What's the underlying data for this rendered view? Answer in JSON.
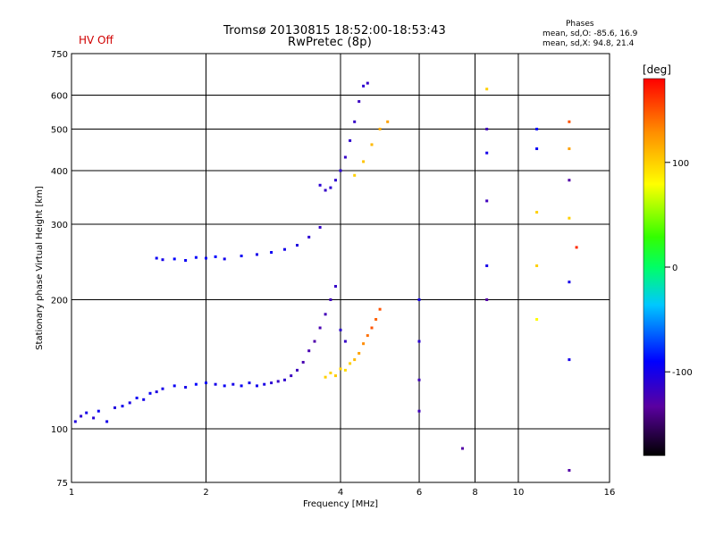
{
  "chart_data": {
    "type": "scatter",
    "title": "Tromsø 20130815 18:52:00-18:53:43",
    "subtitle": "RwPretec (8p)",
    "status": "HV Off",
    "status_color": "#d00000",
    "phases_title": "Phases",
    "phases_o": "mean, sd,O: -85.6, 16.9",
    "phases_x": "mean, sd,X:  94.8, 21.4",
    "xlabel": "Frequency [MHz]",
    "ylabel": "Stationary phase Virtual Height [km]",
    "colorbar_label": "[deg]",
    "x_scale": "log",
    "y_scale": "log",
    "xlim": [
      1,
      16
    ],
    "ylim": [
      75,
      750
    ],
    "x_ticks": [
      1,
      2,
      4,
      6,
      8,
      10,
      16
    ],
    "x_tick_labels": [
      "1",
      "2",
      "4",
      "6",
      "8",
      "10",
      "16"
    ],
    "y_ticks": [
      75,
      100,
      200,
      300,
      400,
      500,
      600,
      750
    ],
    "y_tick_labels": [
      "75",
      "100",
      "200",
      "300",
      "400",
      "500",
      "600",
      "750"
    ],
    "colorbar_ticks": [
      100,
      0,
      -100
    ],
    "colorbar_tick_labels": [
      "100",
      "0",
      "-100"
    ],
    "colorbar_range": [
      -180,
      180
    ],
    "grid": true,
    "series": [
      {
        "points": [
          [
            1.02,
            104,
            -105
          ],
          [
            1.05,
            107,
            -110
          ],
          [
            1.08,
            109,
            -100
          ],
          [
            1.12,
            106,
            -108
          ],
          [
            1.15,
            110,
            -95
          ],
          [
            1.2,
            104,
            -100
          ],
          [
            1.25,
            112,
            -105
          ],
          [
            1.3,
            113,
            -98
          ],
          [
            1.35,
            115,
            -102
          ],
          [
            1.4,
            118,
            -95
          ],
          [
            1.45,
            117,
            -100
          ],
          [
            1.5,
            121,
            -95
          ],
          [
            1.55,
            122,
            -105
          ],
          [
            1.6,
            124,
            -100
          ],
          [
            1.7,
            126,
            -95
          ],
          [
            1.8,
            125,
            -100
          ],
          [
            1.9,
            127,
            -90
          ],
          [
            2.0,
            128,
            -95
          ],
          [
            2.1,
            127,
            -100
          ],
          [
            2.2,
            126,
            -95
          ],
          [
            2.3,
            127,
            -100
          ],
          [
            2.4,
            126,
            -95
          ],
          [
            2.5,
            128,
            -100
          ],
          [
            2.6,
            126,
            -98
          ],
          [
            2.7,
            127,
            -102
          ],
          [
            2.8,
            128,
            -110
          ],
          [
            2.9,
            129,
            -115
          ],
          [
            3.0,
            130,
            -112
          ],
          [
            3.1,
            133,
            -118
          ],
          [
            3.2,
            137,
            -120
          ],
          [
            3.3,
            143,
            -125
          ],
          [
            3.4,
            152,
            -125
          ],
          [
            3.5,
            160,
            -128
          ],
          [
            3.6,
            172,
            -125
          ],
          [
            3.7,
            185,
            -122
          ],
          [
            3.8,
            200,
            -120
          ],
          [
            3.9,
            215,
            -115
          ],
          [
            4.0,
            170,
            -110
          ],
          [
            4.1,
            160,
            -115
          ]
        ]
      },
      {
        "points": [
          [
            3.7,
            132,
            100
          ],
          [
            3.8,
            135,
            98
          ],
          [
            3.9,
            133,
            102
          ],
          [
            4.0,
            138,
            100
          ],
          [
            4.1,
            137,
            95
          ],
          [
            4.2,
            142,
            100
          ],
          [
            4.3,
            145,
            110
          ],
          [
            4.4,
            150,
            120
          ],
          [
            4.5,
            158,
            130
          ],
          [
            4.6,
            165,
            140
          ],
          [
            4.7,
            172,
            150
          ],
          [
            4.8,
            180,
            145
          ],
          [
            4.9,
            190,
            150
          ]
        ]
      },
      {
        "points": [
          [
            1.55,
            250,
            -95
          ],
          [
            1.6,
            248,
            -100
          ],
          [
            1.7,
            249,
            -90
          ],
          [
            1.8,
            247,
            -95
          ],
          [
            1.9,
            251,
            -92
          ],
          [
            2.0,
            250,
            -95
          ],
          [
            2.1,
            252,
            -90
          ],
          [
            2.2,
            249,
            -98
          ],
          [
            2.4,
            253,
            -95
          ],
          [
            2.6,
            255,
            -100
          ],
          [
            2.8,
            258,
            -95
          ],
          [
            3.0,
            262,
            -100
          ],
          [
            3.2,
            268,
            -105
          ],
          [
            3.4,
            280,
            -110
          ],
          [
            3.6,
            295,
            -115
          ]
        ]
      },
      {
        "points": [
          [
            3.6,
            370,
            -110
          ],
          [
            3.7,
            360,
            -115
          ],
          [
            3.8,
            365,
            -110
          ],
          [
            3.9,
            380,
            -112
          ],
          [
            4.0,
            400,
            -110
          ],
          [
            4.1,
            430,
            -115
          ],
          [
            4.2,
            470,
            -112
          ],
          [
            4.3,
            520,
            -115
          ],
          [
            4.4,
            580,
            -118
          ],
          [
            4.5,
            630,
            -110
          ],
          [
            4.6,
            640,
            -115
          ]
        ]
      },
      {
        "points": [
          [
            4.3,
            390,
            100
          ],
          [
            4.5,
            420,
            105
          ],
          [
            4.7,
            460,
            110
          ],
          [
            4.9,
            500,
            115
          ],
          [
            5.1,
            520,
            120
          ]
        ]
      },
      {
        "points": [
          [
            8.5,
            620,
            100
          ],
          [
            8.5,
            500,
            -120
          ],
          [
            8.5,
            440,
            -100
          ],
          [
            8.5,
            340,
            -120
          ],
          [
            8.5,
            240,
            -100
          ],
          [
            8.5,
            200,
            -130
          ],
          [
            11.0,
            500,
            -90
          ],
          [
            11.0,
            450,
            -95
          ],
          [
            11.0,
            320,
            100
          ],
          [
            11.0,
            240,
            100
          ],
          [
            11.0,
            180,
            80
          ],
          [
            13.0,
            520,
            150
          ],
          [
            13.0,
            450,
            120
          ],
          [
            13.0,
            380,
            -130
          ],
          [
            13.0,
            310,
            100
          ],
          [
            13.0,
            220,
            -100
          ],
          [
            13.0,
            145,
            -100
          ],
          [
            13.0,
            80,
            -130
          ],
          [
            6.0,
            200,
            -100
          ],
          [
            6.0,
            160,
            -110
          ],
          [
            6.0,
            130,
            -120
          ],
          [
            6.0,
            110,
            -120
          ],
          [
            7.5,
            90,
            -130
          ],
          [
            13.5,
            265,
            165
          ]
        ]
      }
    ]
  }
}
